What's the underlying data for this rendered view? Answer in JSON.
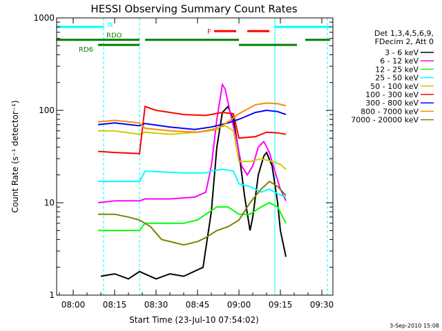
{
  "chart_data": {
    "type": "line",
    "title": "HESSI Observing Summary Count Rates",
    "xlabel": "Start Time (23-Jul-10 07:54:02)",
    "ylabel": "Count Rate (s⁻¹ detector⁻¹)",
    "x_unit": "minutes",
    "xlim": [
      "07:54",
      "09:34"
    ],
    "ylim": [
      1,
      1000
    ],
    "yscale": "log",
    "x_ticks": [
      "08:00",
      "08:15",
      "08:30",
      "08:45",
      "09:00",
      "09:15",
      "09:30"
    ],
    "y_ticks": [
      "1",
      "10",
      "100",
      "1000"
    ],
    "legend_placement": "right",
    "legend_header": [
      "Det 1,3,4,5,6,9,",
      "FDecim 2, Att 0"
    ],
    "series": [
      {
        "name": "3 - 6 keV",
        "color": "#000000",
        "points": [
          [
            "08:10",
            1.6
          ],
          [
            "08:15",
            1.7
          ],
          [
            "08:20",
            1.5
          ],
          [
            "08:24",
            1.8
          ],
          [
            "08:30",
            1.5
          ],
          [
            "08:35",
            1.7
          ],
          [
            "08:40",
            1.6
          ],
          [
            "08:47",
            2.0
          ],
          [
            "08:50",
            8
          ],
          [
            "08:52",
            40
          ],
          [
            "08:54",
            95
          ],
          [
            "08:56",
            110
          ],
          [
            "08:58",
            80
          ],
          [
            "09:00",
            35
          ],
          [
            "09:02",
            12
          ],
          [
            "09:04",
            5
          ],
          [
            "09:05",
            7
          ],
          [
            "09:07",
            20
          ],
          [
            "09:09",
            32
          ],
          [
            "09:10",
            35
          ],
          [
            "09:12",
            25
          ],
          [
            "09:14",
            10
          ],
          [
            "09:15",
            5
          ],
          [
            "09:17",
            2.6
          ]
        ]
      },
      {
        "name": "6 - 12 keV",
        "color": "#ff00ff",
        "points": [
          [
            "08:09",
            10
          ],
          [
            "08:15",
            10.5
          ],
          [
            "08:24",
            10.5
          ],
          [
            "08:26",
            11
          ],
          [
            "08:35",
            11
          ],
          [
            "08:44",
            11.5
          ],
          [
            "08:48",
            13
          ],
          [
            "08:50",
            25
          ],
          [
            "08:52",
            80
          ],
          [
            "08:54",
            190
          ],
          [
            "08:55",
            170
          ],
          [
            "08:57",
            90
          ],
          [
            "08:59",
            50
          ],
          [
            "09:01",
            25
          ],
          [
            "09:03",
            20
          ],
          [
            "09:05",
            25
          ],
          [
            "09:07",
            40
          ],
          [
            "09:09",
            46
          ],
          [
            "09:11",
            35
          ],
          [
            "09:13",
            22
          ],
          [
            "09:15",
            14
          ],
          [
            "09:17",
            10.5
          ]
        ]
      },
      {
        "name": "12 - 25 keV",
        "color": "#00ff00",
        "points": [
          [
            "08:09",
            5
          ],
          [
            "08:15",
            5
          ],
          [
            "08:24",
            5
          ],
          [
            "08:26",
            6
          ],
          [
            "08:35",
            6
          ],
          [
            "08:40",
            6
          ],
          [
            "08:45",
            6.5
          ],
          [
            "08:48",
            7.5
          ],
          [
            "08:52",
            9
          ],
          [
            "08:56",
            9
          ],
          [
            "09:00",
            7.5
          ],
          [
            "09:04",
            7.5
          ],
          [
            "09:08",
            9
          ],
          [
            "09:11",
            10
          ],
          [
            "09:14",
            9
          ],
          [
            "09:17",
            6
          ]
        ]
      },
      {
        "name": "25 - 50 keV",
        "color": "#00ffff",
        "points": [
          [
            "08:09",
            17
          ],
          [
            "08:24",
            17
          ],
          [
            "08:26",
            22
          ],
          [
            "08:40",
            21
          ],
          [
            "08:48",
            21
          ],
          [
            "08:50",
            22
          ],
          [
            "08:54",
            23
          ],
          [
            "08:58",
            22
          ],
          [
            "09:00",
            16
          ],
          [
            "09:04",
            15
          ],
          [
            "09:08",
            13
          ],
          [
            "09:11",
            14
          ],
          [
            "09:14",
            12.5
          ],
          [
            "09:17",
            11.5
          ]
        ]
      },
      {
        "name": "50 - 100 keV",
        "color": "#cccc00",
        "points": [
          [
            "08:09",
            60
          ],
          [
            "08:15",
            60
          ],
          [
            "08:24",
            55
          ],
          [
            "08:26",
            58
          ],
          [
            "08:35",
            55
          ],
          [
            "08:45",
            58
          ],
          [
            "08:50",
            62
          ],
          [
            "08:52",
            65
          ],
          [
            "08:55",
            68
          ],
          [
            "08:58",
            60
          ],
          [
            "09:00",
            28
          ],
          [
            "09:04",
            28
          ],
          [
            "09:08",
            30
          ],
          [
            "09:12",
            28
          ],
          [
            "09:15",
            26
          ],
          [
            "09:17",
            23
          ]
        ]
      },
      {
        "name": "100 - 300 keV",
        "color": "#ff0000",
        "points": [
          [
            "08:09",
            36
          ],
          [
            "08:15",
            35
          ],
          [
            "08:24",
            34
          ],
          [
            "08:26",
            110
          ],
          [
            "08:30",
            100
          ],
          [
            "08:40",
            90
          ],
          [
            "08:48",
            88
          ],
          [
            "08:54",
            95
          ],
          [
            "08:58",
            92
          ],
          [
            "09:00",
            50
          ],
          [
            "09:06",
            52
          ],
          [
            "09:10",
            58
          ],
          [
            "09:14",
            57
          ],
          [
            "09:17",
            55
          ]
        ]
      },
      {
        "name": "300 - 800 keV",
        "color": "#0000ff",
        "points": [
          [
            "08:09",
            70
          ],
          [
            "08:15",
            73
          ],
          [
            "08:24",
            68
          ],
          [
            "08:26",
            72
          ],
          [
            "08:35",
            66
          ],
          [
            "08:44",
            62
          ],
          [
            "08:50",
            66
          ],
          [
            "08:56",
            73
          ],
          [
            "09:00",
            80
          ],
          [
            "09:06",
            95
          ],
          [
            "09:10",
            100
          ],
          [
            "09:14",
            97
          ],
          [
            "09:17",
            90
          ]
        ]
      },
      {
        "name": "800 - 7000 keV",
        "color": "#ff8800",
        "points": [
          [
            "08:09",
            75
          ],
          [
            "08:15",
            78
          ],
          [
            "08:24",
            73
          ],
          [
            "08:26",
            64
          ],
          [
            "08:35",
            60
          ],
          [
            "08:45",
            58
          ],
          [
            "08:52",
            62
          ],
          [
            "08:56",
            75
          ],
          [
            "09:00",
            92
          ],
          [
            "09:06",
            115
          ],
          [
            "09:10",
            120
          ],
          [
            "09:14",
            118
          ],
          [
            "09:17",
            112
          ]
        ]
      },
      {
        "name": "7000 - 20000 keV",
        "color": "#808000",
        "points": [
          [
            "08:09",
            7.5
          ],
          [
            "08:15",
            7.5
          ],
          [
            "08:20",
            7
          ],
          [
            "08:24",
            6.5
          ],
          [
            "08:28",
            5.5
          ],
          [
            "08:32",
            4
          ],
          [
            "08:40",
            3.5
          ],
          [
            "08:45",
            3.8
          ],
          [
            "08:48",
            4.2
          ],
          [
            "08:52",
            5
          ],
          [
            "08:56",
            5.5
          ],
          [
            "09:00",
            6.5
          ],
          [
            "09:04",
            10
          ],
          [
            "09:08",
            14
          ],
          [
            "09:11",
            17
          ],
          [
            "09:14",
            15
          ],
          [
            "09:17",
            12
          ]
        ]
      }
    ],
    "state_bars": [
      {
        "label": "N",
        "color": "#00ffff",
        "y": 800,
        "segments": [
          [
            "07:54",
            "08:11"
          ],
          [
            "09:13",
            "09:33"
          ]
        ]
      },
      {
        "label": "RDO",
        "color": "#008000",
        "y": 580,
        "segments": [
          [
            "07:54",
            "08:24"
          ],
          [
            "08:26",
            "09:00"
          ],
          [
            "09:24",
            "09:33"
          ]
        ]
      },
      {
        "label": "RD6",
        "color": "#008000",
        "y": 510,
        "segments": [
          [
            "08:09",
            "08:24"
          ],
          [
            "09:00",
            "09:21"
          ]
        ]
      },
      {
        "label": "F",
        "color": "#ff0000",
        "y": 720,
        "segments": [
          [
            "08:51",
            "08:59"
          ],
          [
            "09:03",
            "09:11"
          ]
        ]
      }
    ],
    "vlines": [
      "08:11",
      "08:24",
      "09:13",
      "09:32"
    ]
  },
  "footer": {
    "date": "3-Sep-2010 15:08"
  }
}
